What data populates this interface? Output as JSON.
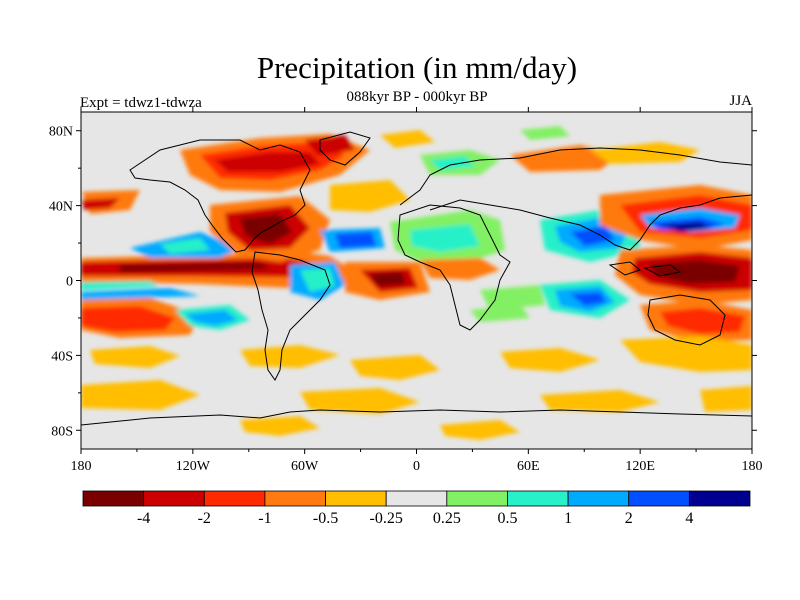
{
  "title": "Precipitation (in mm/day)",
  "subtitle": "088kyr BP - 000kyr BP",
  "experiment_label": "Expt = tdwz1-tdwza",
  "season_label": "JJA",
  "lat_ticks": [
    "80N",
    "40N",
    "0",
    "40S",
    "80S"
  ],
  "lon_ticks": [
    "180",
    "120W",
    "60W",
    "0",
    "60E",
    "120E",
    "180"
  ],
  "colorbar": {
    "colors": [
      "#7a0000",
      "#cc0000",
      "#ff2a00",
      "#ff7a10",
      "#ffbe00",
      "#e6e6e6",
      "#82f064",
      "#28f0c8",
      "#00aaff",
      "#0050ff",
      "#000090"
    ],
    "labels": [
      "-4",
      "-2",
      "-1",
      "-0.5",
      "-0.25",
      "0.25",
      "0.5",
      "1",
      "2",
      "4"
    ]
  },
  "colors": {
    "neutral": "#e6e6e6",
    "coast": "#000000"
  }
}
